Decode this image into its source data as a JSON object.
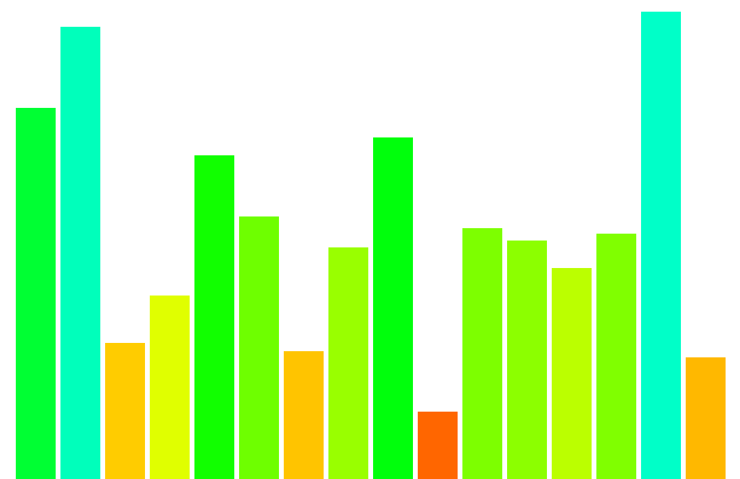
{
  "chart_data": {
    "type": "bar",
    "title": "",
    "xlabel": "",
    "ylabel": "",
    "categories": [
      "",
      "",
      "",
      "",
      "",
      "",
      "",
      "",
      "",
      "",
      "",
      "",
      "",
      "",
      "",
      ""
    ],
    "values": [
      540,
      658,
      198,
      267,
      471,
      382,
      186,
      337,
      497,
      98,
      365,
      347,
      307,
      357,
      680,
      177
    ],
    "colors": [
      "#00ff33",
      "#00ffbb",
      "#ffcc00",
      "#e0ff00",
      "#11ff00",
      "#6eff00",
      "#ffc400",
      "#99ff00",
      "#00ff0c",
      "#ff6600",
      "#7dff00",
      "#8cff00",
      "#bbff00",
      "#80ff00",
      "#00ffc8",
      "#ffb800"
    ],
    "ylim": [
      0,
      697
    ],
    "grid": false,
    "legend": "none"
  }
}
